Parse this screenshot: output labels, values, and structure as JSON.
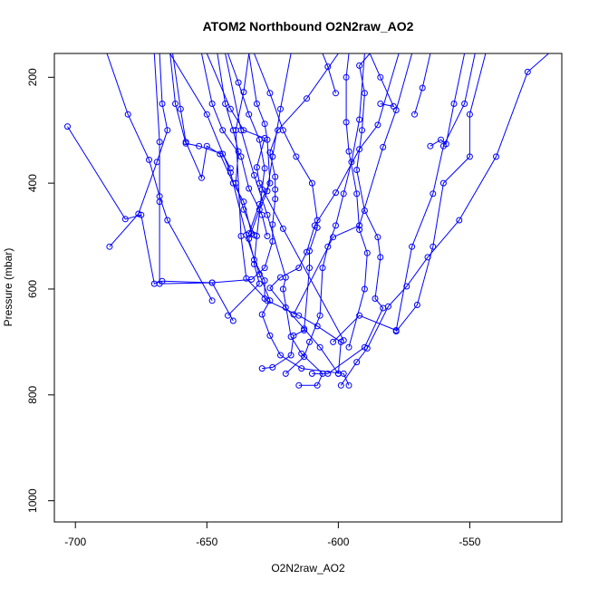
{
  "chart_data": {
    "type": "line",
    "title": "ATOM2 Northbound O2N2raw_AO2",
    "xlabel": "O2N2raw_AO2",
    "ylabel": "Pressure (mbar)",
    "xlim": [
      -708,
      -515
    ],
    "ylim": [
      1040,
      155
    ],
    "y_reversed": true,
    "x_ticks": [
      -700,
      -650,
      -600,
      -550
    ],
    "y_ticks": [
      200,
      400,
      600,
      800,
      1000
    ],
    "grid": false,
    "marker": "open-circle",
    "line_color": "#0000ff",
    "series": [
      {
        "points": [
          [
            -596.0,
            782
          ],
          [
            -598.0,
            760
          ],
          [
            -614.0,
            750
          ],
          [
            -622.0,
            725
          ],
          [
            -626.0,
            688
          ],
          [
            -629.0,
            648
          ],
          [
            -626.0,
            622
          ],
          [
            -630.0,
            572
          ],
          [
            -635.0,
            498
          ],
          [
            -641.0,
            380
          ],
          [
            -650.0,
            270
          ],
          [
            -664.0,
            155
          ]
        ]
      },
      {
        "points": [
          [
            -599.0,
            782
          ],
          [
            -593.0,
            738
          ],
          [
            -589.0,
            712
          ],
          [
            -581.0,
            633
          ],
          [
            -574.0,
            595
          ],
          [
            -566.0,
            540
          ],
          [
            -554.0,
            470
          ],
          [
            -540.0,
            350
          ],
          [
            -528.0,
            190
          ],
          [
            -520.0,
            155
          ]
        ]
      },
      {
        "points": [
          [
            -615.0,
            782
          ],
          [
            -608.0,
            782
          ],
          [
            -606.0,
            760
          ],
          [
            -614.0,
            722
          ],
          [
            -618.0,
            690
          ],
          [
            -621.0,
            600
          ],
          [
            -620.0,
            578
          ],
          [
            -627.0,
            460
          ],
          [
            -632.0,
            385
          ],
          [
            -637.0,
            300
          ],
          [
            -643.0,
            155
          ]
        ]
      },
      {
        "points": [
          [
            -600.0,
            760
          ],
          [
            -599.0,
            700
          ],
          [
            -608.0,
            670
          ],
          [
            -615.0,
            650
          ],
          [
            -627.0,
            622
          ],
          [
            -635.0,
            580
          ],
          [
            -637.0,
            500
          ],
          [
            -639.0,
            300
          ],
          [
            -636.0,
            228
          ],
          [
            -634.0,
            155
          ]
        ]
      },
      {
        "points": [
          [
            -629.0,
            750
          ],
          [
            -625.0,
            748
          ],
          [
            -618.0,
            725
          ],
          [
            -617.0,
            688
          ],
          [
            -613.0,
            678
          ],
          [
            -611.0,
            560
          ],
          [
            -611.0,
            528
          ],
          [
            -608.0,
            484
          ],
          [
            -608.0,
            470
          ],
          [
            -610.0,
            400
          ],
          [
            -616.0,
            350
          ],
          [
            -621.0,
            300
          ],
          [
            -626.0,
            230
          ],
          [
            -632.0,
            155
          ]
        ]
      },
      {
        "points": [
          [
            -640.0,
            660
          ],
          [
            -648.0,
            588
          ],
          [
            -668.0,
            590
          ],
          [
            -668.0,
            435
          ],
          [
            -668.0,
            322
          ],
          [
            -670.0,
            155
          ]
        ]
      },
      {
        "points": [
          [
            -642.0,
            650
          ],
          [
            -630.0,
            590
          ],
          [
            -632.0,
            553
          ],
          [
            -631.0,
            500
          ],
          [
            -629.0,
            412
          ],
          [
            -628.0,
            372
          ],
          [
            -630.0,
            318
          ],
          [
            -634.0,
            270
          ],
          [
            -638.0,
            210
          ],
          [
            -642.0,
            155
          ]
        ]
      },
      {
        "points": [
          [
            -648.0,
            622
          ],
          [
            -665.0,
            470
          ],
          [
            -668.0,
            425
          ],
          [
            -672.0,
            356
          ],
          [
            -680.0,
            270
          ],
          [
            -688.0,
            155
          ]
        ]
      },
      {
        "points": [
          [
            -703.0,
            293
          ],
          [
            -681.0,
            468
          ],
          [
            -675.0,
            460
          ],
          [
            -670.0,
            590
          ],
          [
            -667.0,
            585
          ],
          [
            -648.0,
            588
          ],
          [
            -633.0,
            582
          ],
          [
            -628.0,
            560
          ],
          [
            -625.0,
            510
          ],
          [
            -625.0,
            478
          ],
          [
            -624.0,
            430
          ],
          [
            -624.0,
            412
          ],
          [
            -624.0,
            388
          ],
          [
            -626.0,
            342
          ],
          [
            -623.0,
            300
          ],
          [
            -612.0,
            240
          ],
          [
            -600.0,
            155
          ]
        ]
      },
      {
        "points": [
          [
            -687.0,
            520
          ],
          [
            -676.0,
            458
          ],
          [
            -669.0,
            360
          ],
          [
            -665.0,
            300
          ],
          [
            -667.0,
            250
          ],
          [
            -668.0,
            155
          ]
        ]
      },
      {
        "points": [
          [
            -600.0,
            760
          ],
          [
            -607.0,
            710
          ],
          [
            -613.0,
            675
          ],
          [
            -620.0,
            635
          ],
          [
            -626.0,
            598
          ],
          [
            -622.0,
            578
          ],
          [
            -615.0,
            560
          ],
          [
            -612.0,
            530
          ],
          [
            -609.0,
            480
          ],
          [
            -601.0,
            418
          ],
          [
            -592.0,
            336
          ],
          [
            -585.0,
            290
          ],
          [
            -577.0,
            155
          ]
        ]
      },
      {
        "points": [
          [
            -610.0,
            760
          ],
          [
            -604.0,
            760
          ],
          [
            -590.0,
            710
          ],
          [
            -583.0,
            636
          ],
          [
            -586.0,
            618
          ],
          [
            -584.0,
            540
          ],
          [
            -585.0,
            502
          ],
          [
            -590.0,
            452
          ],
          [
            -593.0,
            375
          ],
          [
            -591.0,
            300
          ],
          [
            -590.0,
            230
          ],
          [
            -592.0,
            178
          ],
          [
            -588.0,
            155
          ]
        ]
      },
      {
        "points": [
          [
            -596.0,
            710
          ],
          [
            -590.0,
            600
          ],
          [
            -589.0,
            532
          ],
          [
            -592.0,
            488
          ],
          [
            -593.0,
            420
          ],
          [
            -596.0,
            340
          ],
          [
            -597.0,
            285
          ],
          [
            -597.0,
            200
          ],
          [
            -596.0,
            155
          ]
        ]
      },
      {
        "points": [
          [
            -602.0,
            700
          ],
          [
            -592.0,
            650
          ],
          [
            -578.0,
            678
          ],
          [
            -572.0,
            520
          ],
          [
            -564.0,
            420
          ],
          [
            -560.0,
            330
          ],
          [
            -552.0,
            250
          ],
          [
            -548.0,
            155
          ]
        ]
      },
      {
        "points": [
          [
            -578.0,
            680
          ],
          [
            -570.0,
            630
          ],
          [
            -564.0,
            520
          ],
          [
            -560.0,
            400
          ],
          [
            -550.0,
            350
          ],
          [
            -550.0,
            270
          ],
          [
            -544.0,
            155
          ]
        ]
      },
      {
        "points": [
          [
            -617.0,
            648
          ],
          [
            -602.0,
            502
          ],
          [
            -592.0,
            480
          ],
          [
            -583.0,
            332
          ],
          [
            -578.0,
            262
          ],
          [
            -572.0,
            155
          ]
        ]
      },
      {
        "points": [
          [
            -598.0,
            697
          ],
          [
            -621.0,
            486
          ],
          [
            -630.0,
            400
          ],
          [
            -631.0,
            370
          ],
          [
            -628.0,
            315
          ],
          [
            -636.0,
            300
          ],
          [
            -641.0,
            260
          ],
          [
            -650.0,
            155
          ]
        ]
      },
      {
        "points": [
          [
            -601.0,
            230
          ],
          [
            -604.0,
            180
          ],
          [
            -606.0,
            155
          ]
        ]
      },
      {
        "points": [
          [
            -584.0,
            250
          ],
          [
            -579.0,
            255
          ],
          [
            -584.0,
            200
          ],
          [
            -588.0,
            155
          ]
        ]
      },
      {
        "points": [
          [
            -571.0,
            270
          ],
          [
            -568.0,
            220
          ],
          [
            -565.0,
            155
          ]
        ]
      },
      {
        "points": [
          [
            -565.0,
            330
          ],
          [
            -561.0,
            318
          ],
          [
            -559.0,
            326
          ],
          [
            -556.0,
            250
          ],
          [
            -552.0,
            155
          ]
        ]
      },
      {
        "points": [
          [
            -641.0,
            372
          ],
          [
            -644.0,
            345
          ],
          [
            -653.0,
            330
          ],
          [
            -658.0,
            325
          ],
          [
            -662.0,
            250
          ],
          [
            -664.0,
            155
          ]
        ]
      },
      {
        "points": [
          [
            -633.0,
            495
          ],
          [
            -636.0,
            435
          ],
          [
            -640.0,
            400
          ],
          [
            -645.0,
            345
          ],
          [
            -650.0,
            330
          ],
          [
            -652.0,
            390
          ],
          [
            -658.0,
            322
          ],
          [
            -660.0,
            260
          ],
          [
            -663.0,
            155
          ]
        ]
      },
      {
        "points": [
          [
            -627.0,
            500
          ],
          [
            -629.0,
            460
          ],
          [
            -634.0,
            410
          ],
          [
            -637.0,
            350
          ],
          [
            -644.0,
            300
          ],
          [
            -648.0,
            250
          ],
          [
            -652.0,
            155
          ]
        ]
      },
      {
        "points": [
          [
            -634.0,
            495
          ],
          [
            -630.0,
            440
          ],
          [
            -626.0,
            400
          ],
          [
            -627.0,
            318
          ],
          [
            -628.0,
            288
          ],
          [
            -631.0,
            250
          ],
          [
            -634.0,
            155
          ]
        ]
      },
      {
        "points": [
          [
            -628.0,
            618
          ],
          [
            -628.0,
            584
          ],
          [
            -632.0,
            545
          ],
          [
            -634.0,
            505
          ],
          [
            -630.0,
            450
          ],
          [
            -627.0,
            415
          ],
          [
            -625.0,
            350
          ],
          [
            -622.0,
            260
          ],
          [
            -618.0,
            155
          ]
        ]
      },
      {
        "points": [
          [
            -632.0,
            498
          ],
          [
            -636.0,
            450
          ],
          [
            -639.0,
            400
          ],
          [
            -638.0,
            340
          ],
          [
            -640.0,
            300
          ],
          [
            -643.0,
            250
          ],
          [
            -646.0,
            155
          ]
        ]
      },
      {
        "points": [
          [
            -620.0,
            760
          ],
          [
            -613.0,
            728
          ],
          [
            -611.0,
            700
          ],
          [
            -607.0,
            650
          ],
          [
            -606.0,
            560
          ],
          [
            -604.0,
            520
          ],
          [
            -601.0,
            480
          ],
          [
            -598.0,
            420
          ],
          [
            -595.0,
            360
          ],
          [
            -592.0,
            280
          ],
          [
            -590.0,
            155
          ]
        ]
      }
    ]
  }
}
